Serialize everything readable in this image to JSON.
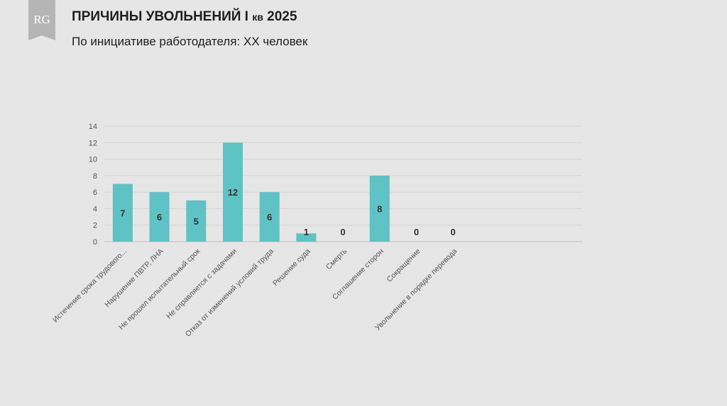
{
  "header": {
    "title_main": "ПРИЧИНЫ УВОЛЬНЕНИЙ I ",
    "title_small": "кв",
    "title_year": " 2025",
    "subtitle": "По инициативе работодателя: ХХ человек",
    "logo_text": "RG"
  },
  "colors": {
    "bar": "#5fc2c4",
    "background": "#e6e6e6",
    "grid": "#d4d4d4",
    "logo": "#b5b5b5"
  },
  "chart_data": {
    "type": "bar",
    "title": "",
    "xlabel": "",
    "ylabel": "",
    "categories": [
      "Истечение срока трудового...",
      "Нарушение ПВТР, ЛНА",
      "Не прошел испытательный срок",
      "Не справляется с задачами",
      "Отказ от изменений условий труда",
      "Решение суда",
      "Смерть",
      "Соглашение сторон",
      "Сокращение",
      "Увольнение в порядке перевода"
    ],
    "values": [
      7,
      6,
      5,
      12,
      6,
      1,
      0,
      8,
      0,
      0
    ],
    "ylim": [
      0,
      14
    ],
    "yticks": [
      0,
      2,
      4,
      6,
      8,
      10,
      12,
      14
    ],
    "grid": true,
    "data_labels": true,
    "legend": "none"
  }
}
